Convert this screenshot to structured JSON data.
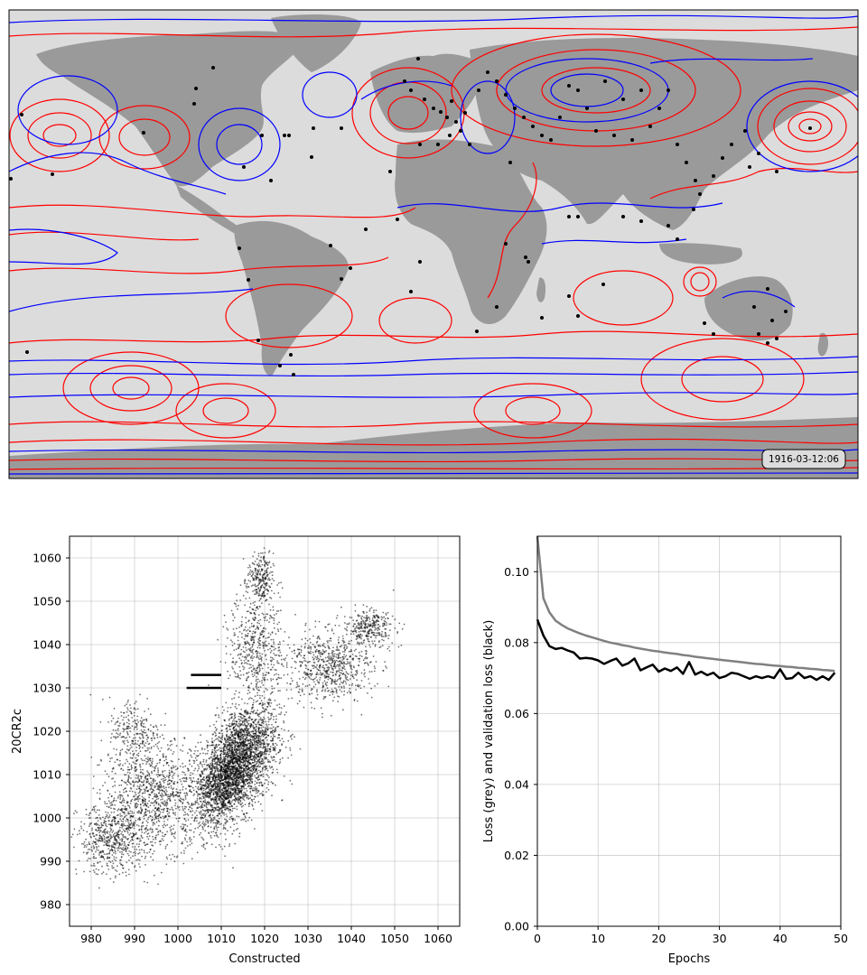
{
  "map": {
    "timestamp": "1916-03-12:06",
    "colors": {
      "ocean": "#dcdcdc",
      "land": "#9a9a9a",
      "contour_red": "#ff0000",
      "contour_blue": "#0000ff",
      "obs": "#000000"
    }
  },
  "chart_data": [
    {
      "type": "scatter",
      "title": "",
      "xlabel": "Constructed",
      "ylabel": "20CR2c",
      "xlim": [
        975,
        1065
      ],
      "ylim": [
        975,
        1065
      ],
      "xticks": [
        980,
        990,
        1000,
        1010,
        1020,
        1030,
        1040,
        1050,
        1060
      ],
      "yticks": [
        980,
        990,
        1000,
        1010,
        1020,
        1030,
        1040,
        1050,
        1060
      ],
      "grid": true,
      "point_color": "#000000",
      "density_clusters": [
        {
          "x": 1015,
          "y": 1014,
          "count": 2200
        },
        {
          "x": 1010,
          "y": 1008,
          "count": 1200
        },
        {
          "x": 995,
          "y": 1005,
          "count": 1100
        },
        {
          "x": 985,
          "y": 995,
          "count": 600
        },
        {
          "x": 1035,
          "y": 1035,
          "count": 700
        },
        {
          "x": 1044,
          "y": 1044,
          "count": 300
        },
        {
          "x": 1018,
          "y": 1040,
          "count": 500
        },
        {
          "x": 1019,
          "y": 1055,
          "count": 250
        },
        {
          "x": 990,
          "y": 1020,
          "count": 250
        }
      ],
      "horizontal_segments": [
        {
          "x": [
            1002,
            1010
          ],
          "y": 1030
        },
        {
          "x": [
            1003,
            1010
          ],
          "y": 1033
        }
      ]
    },
    {
      "type": "line",
      "title": "",
      "xlabel": "Epochs",
      "ylabel": "Loss (grey) and validation loss (black)",
      "xlim": [
        0,
        50
      ],
      "ylim": [
        0.0,
        0.11
      ],
      "xticks": [
        0,
        10,
        20,
        30,
        40,
        50
      ],
      "yticks": [
        0.0,
        0.02,
        0.04,
        0.06,
        0.08,
        0.1
      ],
      "ytick_labels": [
        "0.00",
        "0.02",
        "0.04",
        "0.06",
        "0.08",
        "0.10"
      ],
      "grid": true,
      "x": [
        0,
        1,
        2,
        3,
        4,
        5,
        6,
        7,
        8,
        9,
        10,
        11,
        12,
        13,
        14,
        15,
        16,
        17,
        18,
        19,
        20,
        21,
        22,
        23,
        24,
        25,
        26,
        27,
        28,
        29,
        30,
        31,
        32,
        33,
        34,
        35,
        36,
        37,
        38,
        39,
        40,
        41,
        42,
        43,
        44,
        45,
        46,
        47,
        48,
        49
      ],
      "series": [
        {
          "color": "#808080",
          "values": [
            0.11,
            0.0925,
            0.0885,
            0.0862,
            0.085,
            0.084,
            0.0833,
            0.0826,
            0.082,
            0.0815,
            0.081,
            0.0805,
            0.08,
            0.0797,
            0.0793,
            0.079,
            0.0786,
            0.0783,
            0.078,
            0.0777,
            0.0775,
            0.0772,
            0.077,
            0.0768,
            0.0765,
            0.0763,
            0.076,
            0.0758,
            0.0756,
            0.0754,
            0.0752,
            0.075,
            0.0748,
            0.0746,
            0.0744,
            0.0742,
            0.074,
            0.0739,
            0.0737,
            0.0735,
            0.0734,
            0.0732,
            0.0731,
            0.0729,
            0.0728,
            0.0726,
            0.0725,
            0.0723,
            0.0722,
            0.072
          ]
        },
        {
          "color": "#000000",
          "values": [
            0.0865,
            0.082,
            0.079,
            0.0782,
            0.0785,
            0.0778,
            0.0772,
            0.0755,
            0.0757,
            0.0755,
            0.075,
            0.074,
            0.0748,
            0.0755,
            0.0735,
            0.0742,
            0.0755,
            0.0722,
            0.073,
            0.0738,
            0.0718,
            0.0727,
            0.072,
            0.073,
            0.0712,
            0.0745,
            0.071,
            0.0718,
            0.0708,
            0.0715,
            0.07,
            0.0705,
            0.0715,
            0.0712,
            0.0705,
            0.0698,
            0.0705,
            0.07,
            0.0705,
            0.07,
            0.0725,
            0.0698,
            0.07,
            0.0715,
            0.07,
            0.0705,
            0.0695,
            0.0705,
            0.0695,
            0.0715
          ]
        }
      ]
    }
  ]
}
